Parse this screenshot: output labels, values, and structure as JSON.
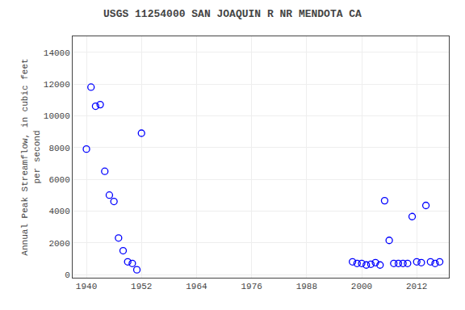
{
  "chart_data": {
    "type": "scatter",
    "title": "USGS 11254000 SAN JOAQUIN R NR MENDOTA CA",
    "ylabel": "Annual Peak Streamflow, in cubic feet\nper second",
    "x": [
      1940,
      1941,
      1942,
      1943,
      1944,
      1945,
      1946,
      1947,
      1948,
      1949,
      1950,
      1951,
      1952,
      1998,
      1999,
      2000,
      2001,
      2002,
      2003,
      2004,
      2005,
      2006,
      2007,
      2008,
      2009,
      2010,
      2011,
      2012,
      2013,
      2014,
      2015,
      2016,
      2017
    ],
    "values": [
      7900,
      11800,
      10600,
      10700,
      6500,
      5000,
      4600,
      2300,
      1500,
      800,
      700,
      300,
      8900,
      800,
      700,
      700,
      600,
      650,
      750,
      600,
      4650,
      2150,
      700,
      700,
      700,
      700,
      3650,
      800,
      750,
      4350,
      800,
      700,
      800
    ],
    "color": "blue",
    "marker": "circle-open",
    "xlim": [
      1937,
      2019
    ],
    "ylim": [
      -200,
      15000
    ],
    "xticks": [
      1940,
      1952,
      1964,
      1976,
      1988,
      2000,
      2012
    ],
    "yticks": [
      0,
      2000,
      4000,
      6000,
      8000,
      10000,
      12000,
      14000
    ],
    "grid": true
  }
}
